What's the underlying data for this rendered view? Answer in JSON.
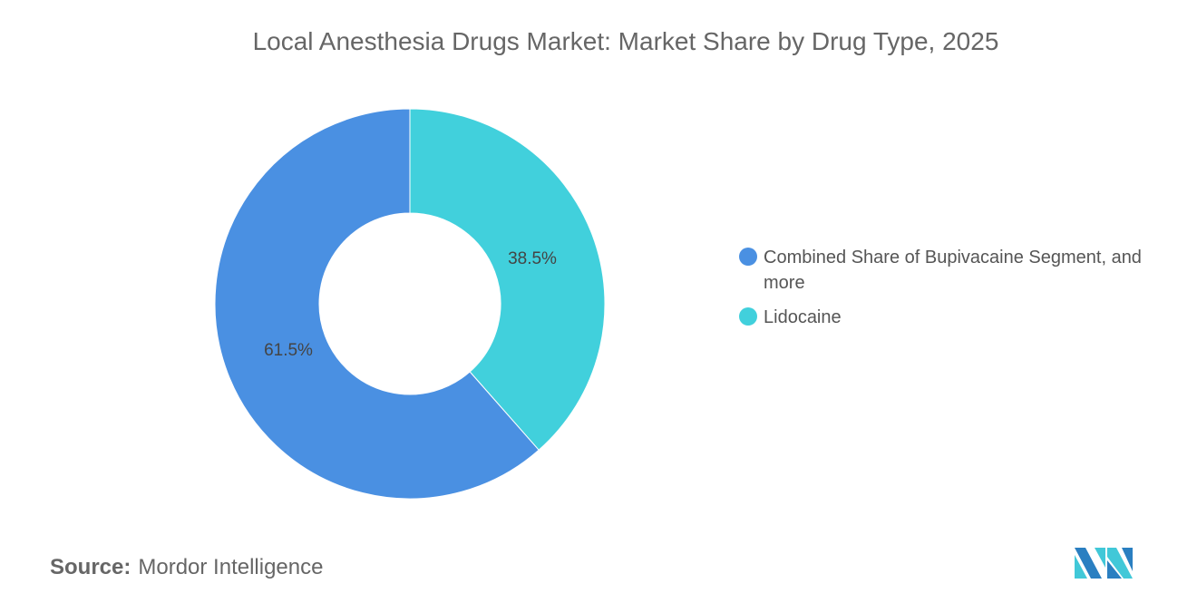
{
  "chart_data": {
    "type": "pie",
    "donut": true,
    "title": "Local Anesthesia Drugs Market: Market Share by Drug Type, 2025",
    "series": [
      {
        "name": "Lidocaine",
        "value": 38.5,
        "label": "38.5%",
        "color": "#41D0DC"
      },
      {
        "name": "Combined Share of Bupivacaine Segment, and more",
        "value": 61.5,
        "label": "61.5%",
        "color": "#4A90E2"
      }
    ],
    "legend_position": "right",
    "legend": [
      {
        "label": "Combined Share of Bupivacaine Segment, and more",
        "color": "#4A90E2"
      },
      {
        "label": "Lidocaine",
        "color": "#41D0DC"
      }
    ]
  },
  "source": {
    "prefix": "Source:",
    "text": "Mordor Intelligence"
  }
}
